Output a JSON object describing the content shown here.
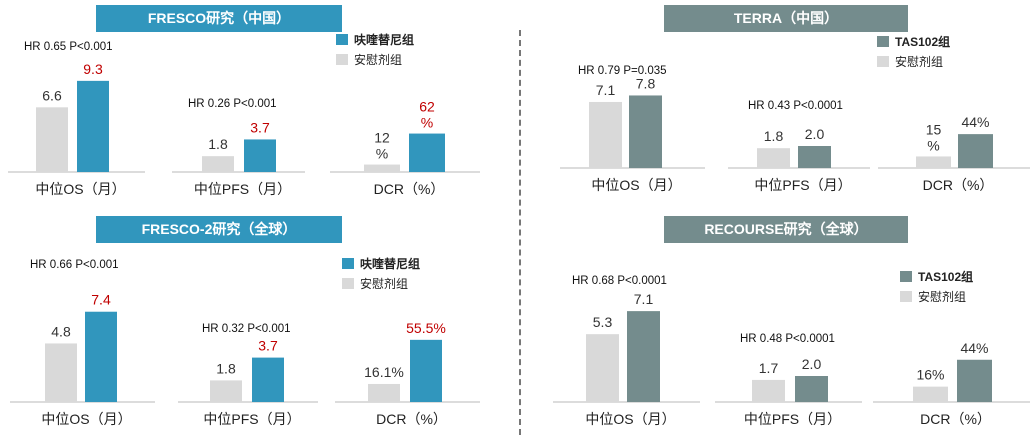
{
  "colors": {
    "placebo": "#d9d9d9",
    "fruquintinib": "#3196bd",
    "tas102": "#748c8d",
    "highlight_red": "#c00000",
    "banner_blue": "#3196bd",
    "banner_gray": "#748c8d"
  },
  "panels": {
    "fresco": {
      "title": "FRESCO研究（中国）",
      "legend": [
        "呋喹替尼组",
        "安慰剂组"
      ]
    },
    "fresco2": {
      "title": "FRESCO-2研究（全球）",
      "legend": [
        "呋喹替尼组",
        "安慰剂组"
      ]
    },
    "terra": {
      "title": "TERRA（中国）",
      "legend": [
        "TAS102组",
        "安慰剂组"
      ]
    },
    "recourse": {
      "title": "RECOURSE研究（全球）",
      "legend": [
        "TAS102组",
        "安慰剂组"
      ]
    }
  },
  "chart_data": [
    {
      "id": "fresco",
      "type": "bar",
      "categories": [
        "中位OS（月）",
        "中位PFS（月）",
        "DCR（%）"
      ],
      "stats": [
        "HR 0.65 P<0.001",
        "HR 0.26 P<0.001",
        ""
      ],
      "series": [
        {
          "name": "安慰剂组",
          "values": [
            6.6,
            1.8,
            12
          ],
          "labels": [
            "6.6",
            "1.8",
            "12 %"
          ]
        },
        {
          "name": "呋喹替尼组",
          "values": [
            9.3,
            3.7,
            62
          ],
          "labels": [
            "9.3",
            "3.7",
            "62 %"
          ]
        }
      ]
    },
    {
      "id": "fresco2",
      "type": "bar",
      "categories": [
        "中位OS（月）",
        "中位PFS（月）",
        "DCR（%）"
      ],
      "stats": [
        "HR 0.66 P<0.001",
        "HR 0.32 P<0.001",
        ""
      ],
      "series": [
        {
          "name": "安慰剂组",
          "values": [
            4.8,
            1.8,
            16.1
          ],
          "labels": [
            "4.8",
            "1.8",
            "16.1%"
          ]
        },
        {
          "name": "呋喹替尼组",
          "values": [
            7.4,
            3.7,
            55.5
          ],
          "labels": [
            "7.4",
            "3.7",
            "55.5%"
          ]
        }
      ]
    },
    {
      "id": "terra",
      "type": "bar",
      "categories": [
        "中位OS（月）",
        "中位PFS（月）",
        "DCR（%）"
      ],
      "stats": [
        "HR 0.79 P=0.035",
        "HR 0.43 P<0.0001",
        ""
      ],
      "series": [
        {
          "name": "安慰剂组",
          "values": [
            7.1,
            1.8,
            15
          ],
          "labels": [
            "7.1",
            "1.8",
            "15 %"
          ]
        },
        {
          "name": "TAS102组",
          "values": [
            7.8,
            2.0,
            44
          ],
          "labels": [
            "7.8",
            "2.0",
            "44%"
          ]
        }
      ]
    },
    {
      "id": "recourse",
      "type": "bar",
      "categories": [
        "中位OS（月）",
        "中位PFS（月）",
        "DCR（%）"
      ],
      "stats": [
        "HR 0.68 P<0.0001",
        "HR 0.48 P<0.0001",
        ""
      ],
      "series": [
        {
          "name": "安慰剂组",
          "values": [
            5.3,
            1.7,
            16
          ],
          "labels": [
            "5.3",
            "1.7",
            "16%"
          ]
        },
        {
          "name": "TAS102组",
          "values": [
            7.1,
            2.0,
            44
          ],
          "labels": [
            "7.1",
            "2.0",
            "44%"
          ]
        }
      ]
    }
  ]
}
